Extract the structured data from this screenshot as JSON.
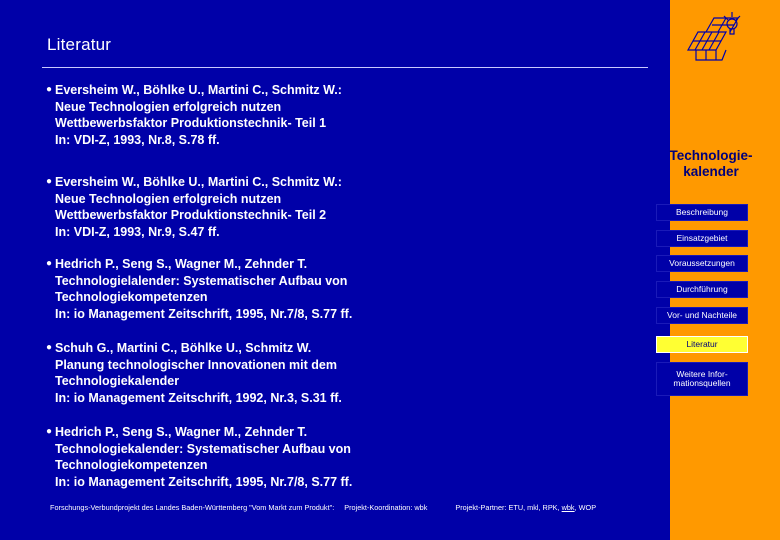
{
  "page": {
    "title": "Literatur"
  },
  "references": [
    {
      "lines": [
        "Eversheim W., Böhlke U., Martini C., Schmitz W.:",
        "Neue Technologien erfolgreich nutzen",
        "Wettbewerbsfaktor Produktionstechnik- Teil 1",
        "In: VDI-Z, 1993, Nr.8, S.78 ff."
      ]
    },
    {
      "lines": [
        "Eversheim W., Böhlke U., Martini C., Schmitz W.:",
        "Neue Technologien erfolgreich nutzen",
        "Wettbewerbsfaktor Produktionstechnik- Teil 2",
        "In: VDI-Z, 1993, Nr.9, S.47 ff."
      ]
    },
    {
      "lines": [
        "Hedrich P., Seng S., Wagner M., Zehnder T.",
        "Technologielalender: Systematischer Aufbau von",
        "Technologiekompetenzen",
        "In: io Management Zeitschrift, 1995, Nr.7/8, S.77 ff."
      ]
    },
    {
      "lines": [
        "Schuh G., Martini C., Böhlke U., Schmitz W.",
        "Planung technologischer Innovationen mit dem",
        "Technologiekalender",
        "In: io Management Zeitschrift, 1992, Nr.3, S.31 ff."
      ]
    },
    {
      "lines": [
        "Hedrich P., Seng S., Wagner M., Zehnder T.",
        "Technologiekalender: Systematischer Aufbau von",
        "Technologiekompetenzen",
        "In: io Management Zeitschrift, 1995, Nr.7/8, S.77 ff."
      ]
    }
  ],
  "footer": {
    "project": "Forschungs-Verbundprojekt des Landes Baden-Württemberg \"Vom Markt zum Produkt\":",
    "coordination": "Projekt-Koordination:  wbk",
    "partners_prefix": "Projekt-Partner: ETU, mkl, RPK, ",
    "partners_wbk": "wbk",
    "partners_suffix": ", WOP"
  },
  "sidebar": {
    "title_line1": "Technologie-",
    "title_line2": "kalender",
    "nav": [
      {
        "label": "Beschreibung",
        "active": false
      },
      {
        "label": "Einsatzgebiet",
        "active": false
      },
      {
        "label": "Voraussetzungen",
        "active": false
      },
      {
        "label": "Durchführung",
        "active": false
      },
      {
        "label": "Vor- und Nachteile",
        "active": false
      },
      {
        "label": "Literatur",
        "active": true
      },
      {
        "label_line1": "Weitere Infor-",
        "label_line2": "mationsquellen",
        "active": false
      }
    ]
  },
  "icons": {
    "logo": "technology-calendar-logo-icon",
    "bullet": "bullet-icon"
  },
  "colors": {
    "background": "#0000a8",
    "sidebar": "#ff9900",
    "active_nav": "#ffff33"
  }
}
